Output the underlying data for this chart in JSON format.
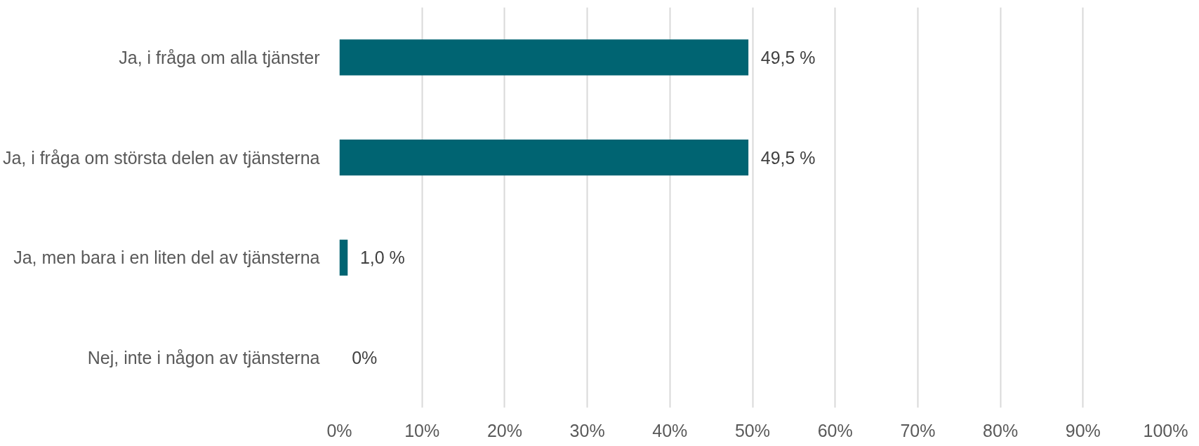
{
  "chart_data": {
    "type": "bar",
    "orientation": "horizontal",
    "categories": [
      "Ja, i fråga om alla tjänster",
      "Ja, i fråga om största delen av tjänsterna",
      "Ja, men bara i en liten del av tjänsterna",
      "Nej, inte i någon av tjänsterna"
    ],
    "values": [
      49.5,
      49.5,
      1.0,
      0
    ],
    "value_labels": [
      "49,5 %",
      "49,5 %",
      "1,0 %",
      "0%"
    ],
    "color": "#006472",
    "xlim": [
      0,
      100
    ],
    "xticks": [
      {
        "value": 0,
        "label": "0%"
      },
      {
        "value": 10,
        "label": "10%"
      },
      {
        "value": 20,
        "label": "20%"
      },
      {
        "value": 30,
        "label": "30%"
      },
      {
        "value": 40,
        "label": "40%"
      },
      {
        "value": 50,
        "label": "50%"
      },
      {
        "value": 60,
        "label": "60%"
      },
      {
        "value": 70,
        "label": "70%"
      },
      {
        "value": 80,
        "label": "80%"
      },
      {
        "value": 90,
        "label": "90%"
      },
      {
        "value": 100,
        "label": "100%"
      }
    ],
    "grid": "x"
  }
}
